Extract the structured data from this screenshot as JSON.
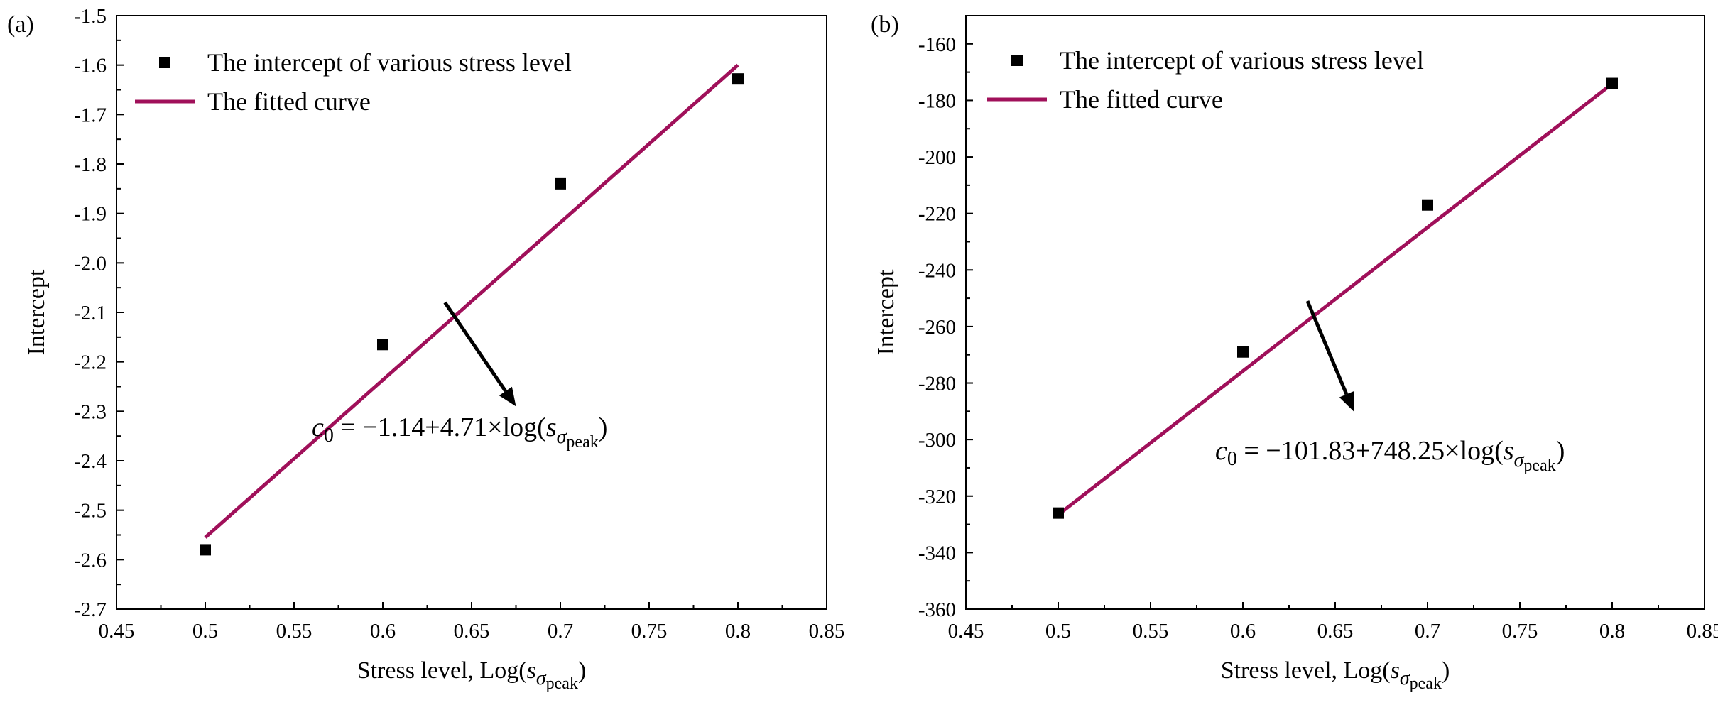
{
  "chart_data": [
    {
      "type": "scatter",
      "panel_label": "(a)",
      "xlabel_prefix": "Stress level, Log(",
      "xlabel_s": "s",
      "xlabel_sigma": "σ",
      "xlabel_peak": "peak",
      "xlabel_suffix": ")",
      "ylabel": "Intercept",
      "xlim": [
        0.45,
        0.85
      ],
      "ylim": [
        -2.7,
        -1.5
      ],
      "xticks": [
        "0.45",
        "0.5",
        "0.55",
        "0.6",
        "0.65",
        "0.7",
        "0.75",
        "0.8",
        "0.85"
      ],
      "yticks": [
        "-1.5",
        "-1.6",
        "-1.7",
        "-1.8",
        "-1.9",
        "-2.0",
        "-2.1",
        "-2.2",
        "-2.3",
        "-2.4",
        "-2.5",
        "-2.6",
        "-2.7"
      ],
      "series": [
        {
          "name": "The intercept of various stress level",
          "kind": "markers",
          "x": [
            0.5,
            0.6,
            0.7,
            0.8
          ],
          "y": [
            -2.58,
            -2.165,
            -1.84,
            -1.628
          ]
        },
        {
          "name": "The fitted curve",
          "kind": "line",
          "x": [
            0.5,
            0.8
          ],
          "y": [
            -2.555,
            -1.6
          ]
        }
      ],
      "annotation": {
        "eq_lhs": "c",
        "eq_sub": "0",
        "eq_mid": " = −1.14+4.71×log(",
        "eq_s": "s",
        "eq_sigma": "σ",
        "eq_peak": "peak",
        "eq_end": ")",
        "arrow_from": [
          0.635,
          -2.08
        ],
        "arrow_to": [
          0.675,
          -2.29
        ],
        "text_anchor": [
          0.56,
          -2.35
        ]
      },
      "colors": {
        "line": "#a0105a",
        "marker": "#000000"
      }
    },
    {
      "type": "scatter",
      "panel_label": "(b)",
      "xlabel_prefix": "Stress level, Log(",
      "xlabel_s": "s",
      "xlabel_sigma": "σ",
      "xlabel_peak": "peak",
      "xlabel_suffix": ")",
      "ylabel": "Intercept",
      "xlim": [
        0.45,
        0.85
      ],
      "ylim": [
        -360,
        -150
      ],
      "xticks": [
        "0.45",
        "0.5",
        "0.55",
        "0.6",
        "0.65",
        "0.7",
        "0.75",
        "0.8",
        "0.85"
      ],
      "yticks": [
        "-160",
        "-180",
        "-200",
        "-220",
        "-240",
        "-260",
        "-280",
        "-300",
        "-320",
        "-340",
        "-360"
      ],
      "series": [
        {
          "name": "The intercept of various stress level",
          "kind": "markers",
          "x": [
            0.5,
            0.6,
            0.7,
            0.8
          ],
          "y": [
            -326,
            -269,
            -217,
            -174
          ]
        },
        {
          "name": "The fitted curve",
          "kind": "line",
          "x": [
            0.5,
            0.8
          ],
          "y": [
            -326.6,
            -174.1
          ]
        }
      ],
      "annotation": {
        "eq_lhs": "c",
        "eq_sub": "0",
        "eq_mid": " = −101.83+748.25×log(",
        "eq_s": "s",
        "eq_sigma": "σ",
        "eq_peak": "peak",
        "eq_end": ")",
        "arrow_from": [
          0.635,
          -251
        ],
        "arrow_to": [
          0.66,
          -290
        ],
        "text_anchor": [
          0.585,
          -307
        ]
      },
      "colors": {
        "line": "#a0105a",
        "marker": "#000000"
      }
    }
  ]
}
